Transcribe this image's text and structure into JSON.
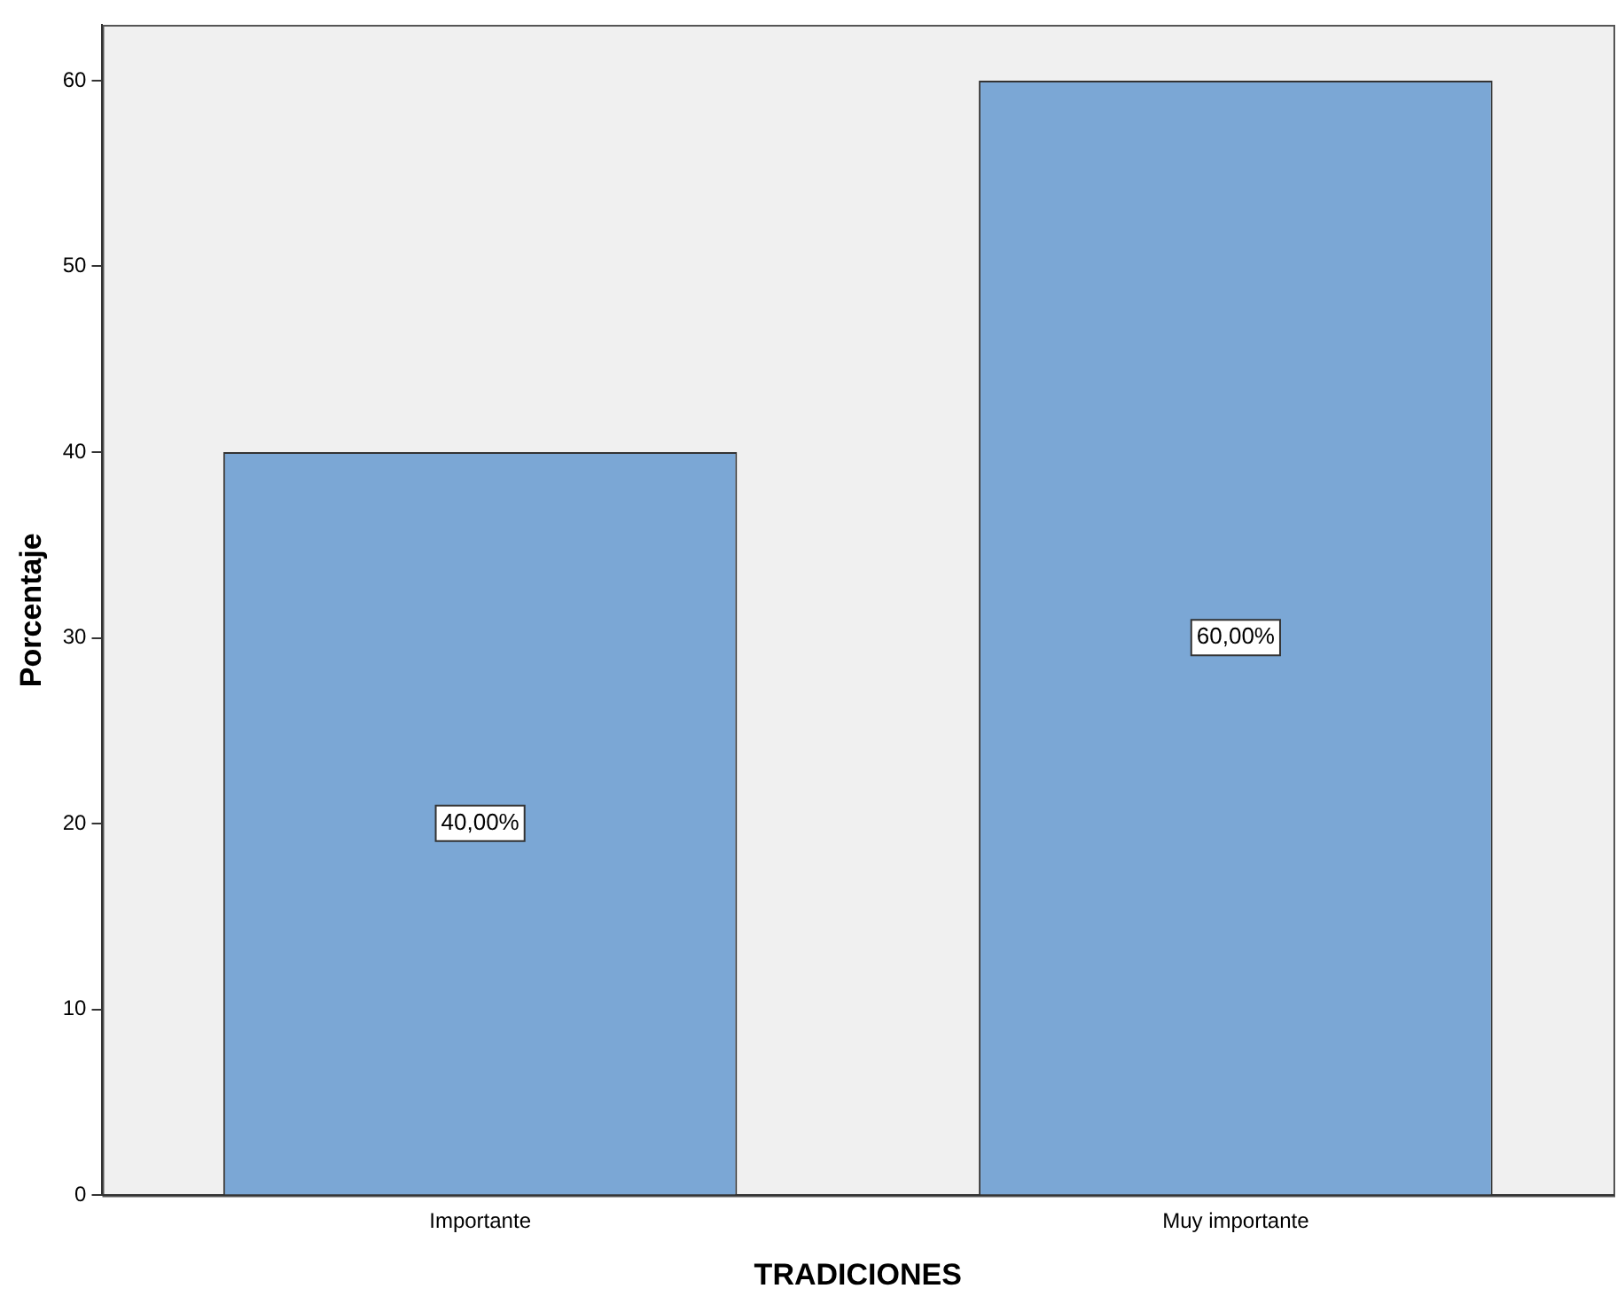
{
  "chart_data": {
    "type": "bar",
    "xlabel": "TRADICIONES",
    "ylabel": "Porcentaje",
    "categories": [
      "Importante",
      "Muy importante"
    ],
    "values": [
      40,
      60
    ],
    "value_labels": [
      "40,00%",
      "60,00%"
    ],
    "color": "#7ba7d5",
    "ylim": [
      0,
      63
    ],
    "yticks": [
      0,
      10,
      20,
      30,
      40,
      50,
      60
    ],
    "grid": false,
    "legend": false
  }
}
